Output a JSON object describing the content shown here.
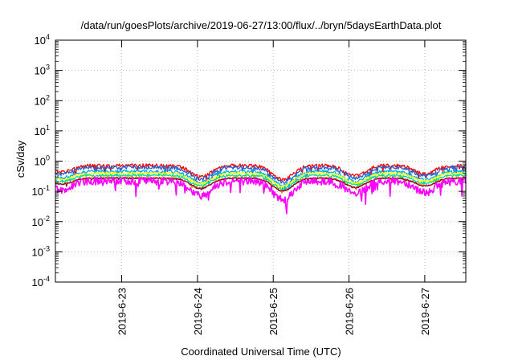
{
  "chart_data": {
    "type": "line",
    "title": "/data/run/goesPlots/archive/2019-06-27/13:00/flux/../bryn/5daysEarthData.plot",
    "xlabel": "Coordinated Universal Time (UTC)",
    "ylabel": "cSv/day",
    "yscale": "log",
    "ylim": [
      0.0001,
      10000
    ],
    "xlim": [
      "2019-06-22T03:00",
      "2019-06-27T13:00"
    ],
    "yticks": [
      {
        "value": 0.0001,
        "base": "10",
        "exp": "-4"
      },
      {
        "value": 0.001,
        "base": "10",
        "exp": "-3"
      },
      {
        "value": 0.01,
        "base": "10",
        "exp": "-2"
      },
      {
        "value": 0.1,
        "base": "10",
        "exp": "-1"
      },
      {
        "value": 1,
        "base": "10",
        "exp": "0"
      },
      {
        "value": 10,
        "base": "10",
        "exp": "1"
      },
      {
        "value": 100,
        "base": "10",
        "exp": "2"
      },
      {
        "value": 1000,
        "base": "10",
        "exp": "3"
      },
      {
        "value": 10000,
        "base": "10",
        "exp": "4"
      }
    ],
    "xticks": [
      {
        "label": "2019-6-23",
        "time": "2019-06-23T00:00"
      },
      {
        "label": "2019-6-24",
        "time": "2019-06-24T00:00"
      },
      {
        "label": "2019-6-25",
        "time": "2019-06-25T00:00"
      },
      {
        "label": "2019-6-26",
        "time": "2019-06-26T00:00"
      },
      {
        "label": "2019-6-27",
        "time": "2019-06-27T00:00"
      }
    ],
    "grid": true,
    "dips": [
      {
        "time": "2019-06-22T05:00",
        "depth": 0.35
      },
      {
        "time": "2019-06-24T01:00",
        "depth": 0.6
      },
      {
        "time": "2019-06-25T03:00",
        "depth": 0.75
      },
      {
        "time": "2019-06-26T02:00",
        "depth": 0.55
      },
      {
        "time": "2019-06-27T00:00",
        "depth": 0.45
      }
    ],
    "series": [
      {
        "color": "#ff0000",
        "level": 0.72,
        "amp": 0.9
      },
      {
        "color": "#2a5fc9",
        "level": 0.62,
        "amp": 1.0
      },
      {
        "color": "#00aaee",
        "level": 0.46,
        "amp": 0.8
      },
      {
        "color": "#ffff00",
        "level": 0.4,
        "amp": 0.6
      },
      {
        "color": "#00dd88",
        "level": 0.34,
        "amp": 0.6
      },
      {
        "color": "#ff8800",
        "level": 0.28,
        "amp": 0.5
      },
      {
        "color": "#880044",
        "level": 0.27,
        "amp": 0.4
      },
      {
        "color": "#ff00ff",
        "level": 0.22,
        "amp": 2.2
      }
    ]
  }
}
